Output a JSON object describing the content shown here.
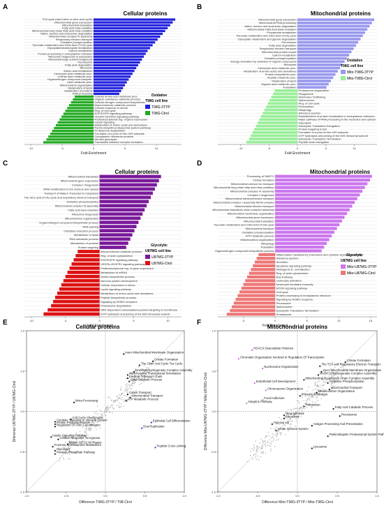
{
  "chart_data": [
    {
      "panel": "A",
      "type": "bar",
      "orientation": "horizontal",
      "title": "Cellular proteins",
      "xlabel": "Fold Enrichment",
      "xticks": [
        "-10",
        "-5",
        "0",
        "5",
        "10"
      ],
      "xlim": [
        -11,
        14
      ],
      "legend": {
        "title": "T98G cell line",
        "items": [
          "T98G-3TYP",
          "T98G-Ctrol"
        ],
        "colors": [
          "#2222dd",
          "#22aa22"
        ],
        "tag": "Oxidative"
      },
      "categories": [
        "TCA cycle (aka Krebs or citric acid cycle)",
        "Mitochondrial gene expression",
        "Mitochondrial translation",
        "Fatty acid beta-oxidation",
        "Mitochondrial long chain fatty acid beta-oxidation",
        "Valine, leucine and isoleucine degradation",
        "Mitochondrial complex III assembly",
        "Respiratory electron transport",
        "Oxidative phosphorylation",
        "Pyruvate metabolism and Citric Acid (TCA) cycle",
        "Glyoxylate/dicarboxylate metabolism",
        "Carbon metabolism",
        "Protein processing in endoplasmic reticulum",
        "Ribosome biogenesis in eukaryotes",
        "Ribosomal large subunit biogenesis",
        "Peroxisome",
        "Fatty acid degradation",
        "Ribosome",
        "Amino acid metabolism",
        "Carboxylic acid metabolic proc.",
        "Cellular lipid metabolic proc.",
        "Organonitrogen compound biosynth.",
        "Lipid metabolic proc.",
        "Mitochondrial organization",
        "Metabolism of lipids",
        "Metabolism of proteins",
        "RNA processing",
        "Cellular amino acid metabolic proc.",
        "Organic substance catabolic process",
        "Cellular nitrogen compound biosynthesis",
        "Macromolecule catabolic process",
        "Cellular response to stress",
        "Reg. of cell cycle",
        "EGF/EGFR signaling pathway",
        "VEGFA-VEGFR2 signaling pathway",
        "Posttranscriptional reg. of gene expression",
        "Insulin signaling",
        "Metabolism of amino acids and derivatives",
        "Parkin-ubiquitin proteasomal system pathway",
        "Proteasome degradation",
        "Formation of a pool of free 40S subunits",
        "Cytoplasmic ribosomal proteins",
        "Aerobic glycolysis",
        "Translation initiation complex formation"
      ],
      "values": [
        13,
        12.6,
        12.2,
        11.8,
        11.4,
        11,
        10.6,
        10.2,
        9.8,
        9.4,
        9,
        8.6,
        8.3,
        8,
        7.7,
        7.4,
        7.1,
        6.8,
        6.5,
        6.2,
        5.9,
        5.6,
        5.3,
        5,
        4.7,
        4.4,
        4.1,
        -3,
        -3.3,
        -3.6,
        -3.9,
        -4.2,
        -4.5,
        -4.8,
        -5.1,
        -5.4,
        -5.7,
        -6,
        -6.3,
        -6.6,
        -6.9,
        -7.2,
        -7.5,
        -8
      ]
    },
    {
      "panel": "B",
      "type": "bar",
      "orientation": "horizontal",
      "title": "Mitochondrial proteins",
      "xlabel": "Fold Enrichment",
      "xticks": [
        "-10",
        "-5",
        "0",
        "5",
        "10"
      ],
      "xlim": [
        -14,
        14
      ],
      "legend": {
        "title": "T98G cell line",
        "items": [
          "Mito-T98G-3TYP",
          "Mito-T98G-Ctrol"
        ],
        "colors": [
          "#9999ee",
          "#99ee99"
        ],
        "tag": "Oxidative"
      },
      "categories": [
        "Mitochondrial gene expression",
        "Mitochondrial RNA processing",
        "Valine, leucine and isoleucine degradation",
        "Mitochondrial Fatty Acid Beta-Oxidation",
        "Propanoate metabolism",
        "Pyruvate metabolism and Citric Acid (TCA) cycle",
        "Glyoxylate metabolism and glycine degradation",
        "Peroxisome",
        "Fatty acid degradation",
        "Respiratory electron transport",
        "Mitochondrial protein import",
        "Carbon metabolism",
        "Oxidative phosphorylation",
        "Energy derivation by oxidation of organic compounds",
        "Ribosome",
        "Carboxylic acid metabolic proc.",
        "Metabolism of amino acids and derivatives",
        "Protein biosynthetic proc.",
        "Peptide metabolic proc.",
        "Metabolism of lipids",
        "Organic acid metabolic proc.",
        "Translation",
        "Proteasome degradation",
        "Phagosome",
        "Membrane Trafficking",
        "Spliceosome",
        "Reg. of cell cycle",
        "Endocytosis",
        "Mitophagy",
        "Adherens junction",
        "Establishment of protein localization to endoplasmic reticulum",
        "Major pathway of RNA processing in the nucleolus and cytosol",
        "Glycolysis",
        "Eukaryotic Translation Elongation",
        "Protein targeting to ER",
        "Formation of a pool of free 40S subunits",
        "GTP hydrolysis and joining of the 60S ribosomal subunit",
        "Eukaryotic Translation Termination",
        "Peptide chain elongation"
      ],
      "values": [
        13.5,
        13.1,
        12.7,
        12.3,
        11.9,
        11.5,
        11.1,
        10.7,
        10.3,
        9.9,
        9.5,
        9.1,
        8.7,
        8.3,
        7.9,
        7.5,
        7.1,
        6.7,
        6.3,
        5.9,
        5.5,
        5.1,
        -4,
        -4.3,
        -4.6,
        -4.9,
        -5.2,
        -5.5,
        -5.8,
        -6.1,
        -6.4,
        -6.7,
        -7,
        -7.3,
        -7.6,
        -7.9,
        -8.2,
        -8.5,
        -9
      ]
    },
    {
      "panel": "C",
      "type": "bar",
      "orientation": "horizontal",
      "title": "Cellular proteins",
      "xlabel": "Fold Enrichment",
      "xticks": [
        "-10",
        "-5",
        "0",
        "5",
        "10"
      ],
      "xlim": [
        -11,
        12
      ],
      "legend": {
        "title": "U87MG cell line",
        "items": [
          "U87MG-3TYP",
          "U87MG-Ctrol"
        ],
        "colors": [
          "#7a1a9a",
          "#dd1111"
        ],
        "tag": "Glycolytic"
      },
      "categories": [
        "Mitochondrial translation",
        "Mitochondrial gene expression",
        "Complex I biogenesis",
        "rRNA modification in the nucleus and cytosol",
        "Transport of Mature Transcript to Cytoplasm",
        "The citric acid (TCA) cycle and respiratory electron transport",
        "Oxidative phosphorylation",
        "Mitochondrial complex III assembly",
        "Fatty acid beta-oxidation",
        "Ribosome biogenesis",
        "Mitochondrion organization",
        "Organonitrogen compound biosynthetic process",
        "RNA splicing",
        "Oxidation-reduction process",
        "Metabolism of lipids",
        "RNA metabolic process",
        "Metabolism of proteins",
        "Protein targeting",
        "Macromolecule catabolic process",
        "Reg. of actin cytoskeleton",
        "EGF/EGFR signaling pathway",
        "VEGFA-VEGFR2 signaling pathway",
        "Posttranscriptional reg. of gene expression",
        "Metabolism of mRNA",
        "Amide biosynthetic process",
        "Nervous system development",
        "Cellular responses to stress",
        "Leptin signaling pathway",
        "Metabolism of amino acids and derivatives",
        "Peptide biosynthetic process",
        "Signaling by ROBO receptors",
        "Proteasome degradation",
        "SRP-dependent cotranslational protein targeting to membrane",
        "GTP hydrolysis and joining of the 60S ribosomal subunit"
      ],
      "values": [
        9,
        8.7,
        8.4,
        8.1,
        7.8,
        7.5,
        7.2,
        6.9,
        6.6,
        6.3,
        6,
        5.7,
        5.4,
        5.1,
        4.8,
        4.5,
        4.2,
        3.9,
        -3.2,
        -3.5,
        -3.8,
        -4.1,
        -4.4,
        -4.7,
        -5,
        -5.3,
        -5.6,
        -5.9,
        -6.2,
        -6.5,
        -6.8,
        -7.1,
        -7.6,
        -8.2
      ]
    },
    {
      "panel": "D",
      "type": "bar",
      "orientation": "horizontal",
      "title": "Mitochondrial proteins",
      "xlabel": "Fold Enrichment",
      "xticks": [
        "-5",
        "0",
        "5",
        "10",
        "15"
      ],
      "xlim": [
        -9,
        16
      ],
      "legend": {
        "title": "U87MG cell line",
        "items": [
          "Mito-U87MG-3TYP",
          "Mito-U87MG-Ctrol"
        ],
        "colors": [
          "#cc77ee",
          "#ee7777"
        ],
        "tag": "Glycolytic"
      },
      "categories": [
        "Processing of SMDT1",
        "Cristae formation",
        "Mitochondrial calcium ion transport",
        "Mitochondrial long chain fatty acid beta-oxidation",
        "Mitochondrial complex IV assembly",
        "Complex I biogenesis",
        "Mitochondrial transmembrane transport",
        "Mitochondrial complex I assembly MCIA complex",
        "Mitochondrial electron transport",
        "Mitochondrial respiratory chain complex assembly",
        "Mitochondrial membrane organization",
        "Mitochondrial gene expression",
        "Mitochondrial translation",
        "Pyruvate metabolism and Citric Acid (TCA) cycle",
        "Mitochondrial transport",
        "Oxidative phosphorylation",
        "ATP metabolic process",
        "Mitochondrion organization",
        "Mitophagy",
        "Translation",
        "Organonitrogen compound biosynthetic process",
        "Inflammation mediated by chemokine and cytokine signaling pathway",
        "Adherens junction",
        "Secretion",
        "Apoptosis signaling pathway",
        "Pathogenic E. coli infection",
        "Reg. of actin cytoskeleton",
        "Ras Pathway",
        "Leukocyte activation",
        "Neutrophil mediated immunity",
        "MTOR signaling pathway",
        "Cell cycle",
        "Protein processing in endoplasmic reticulum",
        "Signaling by ROBO receptors",
        "Peroxisome",
        "Spliceosome",
        "Eukaryotic Translation Termination",
        "Proteasome"
      ],
      "values": [
        15.2,
        14.9,
        14.5,
        14.1,
        13.7,
        13.3,
        12.9,
        12.5,
        12.1,
        11.7,
        11.3,
        10.9,
        10.5,
        10.1,
        9.7,
        9.3,
        8.9,
        8.5,
        8.1,
        7.7,
        7.3,
        -2.6,
        -2.9,
        -3.2,
        -3.5,
        -3.8,
        -4.1,
        -4.4,
        -4.7,
        -5,
        -5.3,
        -5.6,
        -5.9,
        -6.2,
        -6.5,
        -6.8,
        -7.1,
        -7.6
      ]
    },
    {
      "panel": "E",
      "type": "scatter",
      "title": "Cellular proteins",
      "xlabel": "Difference T98G-3TYP / T98-Ctrol",
      "ylabel": "Diference U87MG-3TYP / U87MG-Ctrol",
      "xticks": [
        "-1.0",
        "-0.5",
        "0.0",
        "0.5",
        "1.0"
      ],
      "yticks": [
        "-1.0",
        "-0.5",
        "0.0",
        "0.5",
        "1.0"
      ],
      "xlim": [
        -1,
        1
      ],
      "ylim": [
        -1,
        1
      ],
      "annotations": [
        {
          "label": "Inner Mitochondrial Membrane Organization",
          "x": 0.25,
          "y": 0.72
        },
        {
          "label": "Cristae Formation",
          "x": 0.62,
          "y": 0.63
        },
        {
          "label": "The Citric Acid Cycle Tca Cycle",
          "x": 0.45,
          "y": 0.58
        },
        {
          "label": "NADH Dehydrogenase Complex Assembly",
          "x": 0.38,
          "y": 0.5
        },
        {
          "label": "Mitochondrial Translational Termination",
          "x": 0.3,
          "y": 0.46
        },
        {
          "label": "Electron Transport Chain",
          "x": 0.3,
          "y": 0.42
        },
        {
          "label": "Lipid Catabolic Process",
          "x": 0.32,
          "y": 0.38
        },
        {
          "label": "Cation Transport",
          "x": 0.3,
          "y": 0.22
        },
        {
          "label": "Mitochondrial Transport",
          "x": 0.33,
          "y": 0.18
        },
        {
          "label": "ATP Metabolic Process",
          "x": 0.28,
          "y": 0.14
        },
        {
          "label": "Mrna Processing",
          "x": -0.38,
          "y": 0.12
        },
        {
          "label": "Cell Cycle Checkpoints",
          "x": -0.42,
          "y": -0.09
        },
        {
          "label": "Cytokine Signaling In Immune System",
          "x": -0.62,
          "y": -0.12
        },
        {
          "label": "Protein Polyubiquitination",
          "x": -0.62,
          "y": -0.15
        },
        {
          "label": "Regulation Of Actin Cytoskeleton",
          "x": -0.62,
          "y": -0.18
        },
        {
          "label": "Insulin Signaling Pathway",
          "x": -0.67,
          "y": -0.31
        },
        {
          "label": "Cellular Response To Hypoxia",
          "x": -0.58,
          "y": -0.34
        },
        {
          "label": "Mitotic G2 G2 M Phases",
          "x": -0.46,
          "y": -0.4
        },
        {
          "label": "Fructose And Mannose Metabolism",
          "x": -0.65,
          "y": -0.43
        },
        {
          "label": "Glycolysis",
          "x": -0.62,
          "y": -0.48
        },
        {
          "label": "Pentose Phosphate Pathway",
          "x": -0.62,
          "y": -0.52
        },
        {
          "label": "Epithelial Cell Differentiation",
          "x": 0.6,
          "y": -0.13
        },
        {
          "label": "Dna Replication",
          "x": 0.48,
          "y": -0.2
        },
        {
          "label": "Peptide Cross Linking",
          "x": 0.65,
          "y": -0.44
        }
      ]
    },
    {
      "panel": "F",
      "type": "scatter",
      "title": "Mitochondrial proteins",
      "xlabel": "Difference Mito-T98G-3TYP / Mito-T98G-Ctrol",
      "ylabel": "Difference Mito-U87MG-3TYP / Mito-U87MG-Ctrol",
      "xticks": [
        "-1.0",
        "-0.5",
        "0.0",
        "0.5",
        "1.0"
      ],
      "yticks": [
        "-1.0",
        "-0.5",
        "0.0",
        "0.5",
        "1.0"
      ],
      "xlim": [
        -1,
        1
      ],
      "ylim": [
        -1,
        1
      ],
      "annotations": [
        {
          "label": "HDACS Deacetylate Histones",
          "x": -0.55,
          "y": 0.77
        },
        {
          "label": "Chromatin Organization Involved In Regulation Of Transcription",
          "x": -0.72,
          "y": 0.66
        },
        {
          "label": "Nucleosome Organization",
          "x": -0.42,
          "y": 0.54
        },
        {
          "label": "Cristae Formation",
          "x": 0.62,
          "y": 0.62
        },
        {
          "label": "The TCA and Respiratory Electron Transport",
          "x": 0.3,
          "y": 0.57
        },
        {
          "label": "Inner Mitochondrial Membrane Organization",
          "x": 0.32,
          "y": 0.5
        },
        {
          "label": "NADH Dehydrogenase Complex Assembly",
          "x": 0.28,
          "y": 0.46
        },
        {
          "label": "Mitochondrial Respiratory Chain Complex Assembly",
          "x": 0.1,
          "y": 0.4
        },
        {
          "label": "Oxidative Phosphorylation",
          "x": 0.4,
          "y": 0.36
        },
        {
          "label": "Mitochondrial Transport",
          "x": 0.42,
          "y": 0.28
        },
        {
          "label": "Endothelial Cell Development",
          "x": -0.52,
          "y": 0.36
        },
        {
          "label": "Chromosome Organization",
          "x": -0.38,
          "y": 0.27
        },
        {
          "label": "Focal Adhesion",
          "x": -0.42,
          "y": 0.15
        },
        {
          "label": "Integrin1 Pathway",
          "x": -0.62,
          "y": 0.11
        },
        {
          "label": "Mitochondrion Organization",
          "x": 0.26,
          "y": 0.24
        },
        {
          "label": "Protein Localization",
          "x": 0.05,
          "y": 0.2
        },
        {
          "label": "Translation",
          "x": 0.1,
          "y": 0.07
        },
        {
          "label": "Fatty Acid Catabolic Process",
          "x": 0.47,
          "y": 0.04
        },
        {
          "label": "Neurogenesis",
          "x": -0.15,
          "y": -0.04
        },
        {
          "label": "Ribosome",
          "x": -0.15,
          "y": -0.08
        },
        {
          "label": "Hypoxia Up",
          "x": -0.3,
          "y": -0.15
        },
        {
          "label": "Innate Immune System",
          "x": -0.25,
          "y": -0.23
        },
        {
          "label": "Peroxisome",
          "x": 0.55,
          "y": -0.05
        },
        {
          "label": "Antigen Processing And Presentation",
          "x": 0.2,
          "y": -0.17
        },
        {
          "label": "Parkinubiquitin Proteasomal System Pathway",
          "x": 0.4,
          "y": -0.3
        },
        {
          "label": "Lysosome",
          "x": 0.2,
          "y": -0.45
        }
      ]
    }
  ],
  "panel_labels": [
    "A",
    "B",
    "C",
    "D",
    "E",
    "F"
  ]
}
